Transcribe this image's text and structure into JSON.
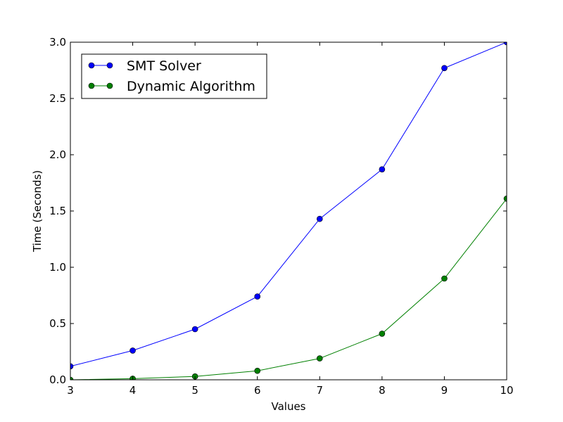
{
  "chart_data": {
    "type": "line",
    "title": "",
    "xlabel": "Values",
    "ylabel": "Time (Seconds)",
    "xlim": [
      3,
      10
    ],
    "ylim": [
      0,
      3.0
    ],
    "x": [
      3,
      4,
      5,
      6,
      7,
      8,
      9,
      10
    ],
    "x_ticks": [
      "3",
      "4",
      "5",
      "6",
      "7",
      "8",
      "9",
      "10"
    ],
    "y_ticks": [
      "0.0",
      "0.5",
      "1.0",
      "1.5",
      "2.0",
      "2.5",
      "3.0"
    ],
    "grid": false,
    "legend_position": "top-left",
    "series": [
      {
        "name": "SMT Solver",
        "color": "#0000ff",
        "marker": "circle",
        "values": [
          0.12,
          0.26,
          0.45,
          0.74,
          1.43,
          1.87,
          2.77,
          3.0
        ]
      },
      {
        "name": "Dynamic Algorithm",
        "color": "#008000",
        "marker": "circle",
        "values": [
          0.0,
          0.01,
          0.03,
          0.08,
          0.19,
          0.41,
          0.9,
          1.61
        ]
      }
    ]
  }
}
